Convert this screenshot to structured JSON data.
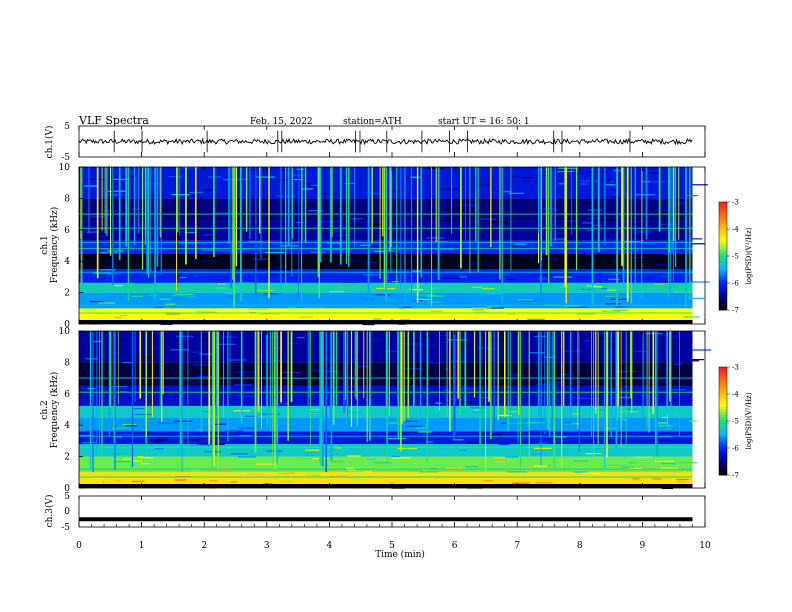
{
  "header": {
    "title": "VLF  Spectra",
    "date": "Feb. 15, 2022",
    "station": "station=ATH",
    "start_ut": "start  UT  =    16: 50: 1"
  },
  "colors": {
    "spec_low": "#000000",
    "spec_mid": "#0000d0",
    "spec_cyan": "#00b8ff",
    "spec_green": "#20e070",
    "spec_high": "#ffff00",
    "spec_max": "#ff2020",
    "trace": "#000000"
  },
  "chart_data": [
    {
      "type": "line",
      "name": "ch1-waveform",
      "ylabel": "ch.1(V)",
      "ylim": [
        -5,
        5
      ],
      "yticks": [
        "5",
        "-5"
      ],
      "x_range_min": [
        0,
        9.8
      ],
      "baseline_v": 0,
      "noise_amplitude_v": 0.8,
      "grid": false
    },
    {
      "type": "heatmap",
      "name": "ch1-spectrogram",
      "ylabel": "ch.1\nFrequency  (kHz)",
      "ylabel_line1": "ch.1",
      "ylabel_line2": "Frequency  (kHz)",
      "ylim": [
        0,
        10
      ],
      "yticks": [
        "0",
        "2",
        "4",
        "6",
        "8",
        "10"
      ],
      "x_range_min": [
        0,
        9.8
      ],
      "colorbar": {
        "label": "log(PSD)(V²/Hz)",
        "ticks": [
          "-3",
          "-4",
          "-5",
          "-6",
          "-7"
        ],
        "range": [
          -7,
          -3
        ]
      },
      "bands_khz": [
        {
          "from": 0,
          "to": 0.25,
          "level": -6.9
        },
        {
          "from": 0.25,
          "to": 1.0,
          "level": -4.4
        },
        {
          "from": 1.0,
          "to": 2.0,
          "level": -5.6
        },
        {
          "from": 2.0,
          "to": 2.6,
          "level": -5.2
        },
        {
          "from": 2.6,
          "to": 3.5,
          "level": -6.1
        },
        {
          "from": 3.5,
          "to": 4.5,
          "level": -6.9
        },
        {
          "from": 4.5,
          "to": 5.3,
          "level": -6.0
        },
        {
          "from": 5.3,
          "to": 6.5,
          "level": -6.5
        },
        {
          "from": 6.5,
          "to": 8.0,
          "level": -6.6
        },
        {
          "from": 8.0,
          "to": 10.0,
          "level": -6.2
        }
      ]
    },
    {
      "type": "heatmap",
      "name": "ch2-spectrogram",
      "ylabel": "ch.2\nFrequency  (kHz)",
      "ylabel_line1": "ch.2",
      "ylabel_line2": "Frequency  (kHz)",
      "ylim": [
        0,
        10
      ],
      "yticks": [
        "0",
        "2",
        "4",
        "6",
        "8",
        "10"
      ],
      "x_range_min": [
        0,
        9.8
      ],
      "colorbar": {
        "label": "log(PSD)(V²/Hz)",
        "ticks": [
          "-3",
          "-4",
          "-5",
          "-6",
          "-7"
        ],
        "range": [
          -7,
          -3
        ]
      },
      "bands_khz": [
        {
          "from": 0,
          "to": 0.25,
          "level": -6.9
        },
        {
          "from": 0.25,
          "to": 1.0,
          "level": -4.2
        },
        {
          "from": 1.0,
          "to": 2.0,
          "level": -4.8
        },
        {
          "from": 2.0,
          "to": 2.8,
          "level": -5.3
        },
        {
          "from": 2.8,
          "to": 3.6,
          "level": -6.2
        },
        {
          "from": 3.6,
          "to": 4.5,
          "level": -5.6
        },
        {
          "from": 4.5,
          "to": 5.2,
          "level": -5.3
        },
        {
          "from": 5.2,
          "to": 6.5,
          "level": -6.3
        },
        {
          "from": 6.5,
          "to": 8.0,
          "level": -6.8
        },
        {
          "from": 8.0,
          "to": 10.0,
          "level": -6.5
        }
      ]
    },
    {
      "type": "line",
      "name": "ch3-waveform",
      "ylabel": "ch.3(V)",
      "ylim": [
        -5,
        5
      ],
      "yticks": [
        "5",
        "0",
        "-5"
      ],
      "x_range_min": [
        0,
        9.8
      ],
      "baseline_v": -2.5,
      "grid": false
    }
  ],
  "x_axis": {
    "label": "Time  (min)",
    "ticks": [
      "0",
      "1",
      "2",
      "3",
      "4",
      "5",
      "6",
      "7",
      "8",
      "9",
      "10"
    ],
    "range": [
      0,
      10
    ]
  }
}
